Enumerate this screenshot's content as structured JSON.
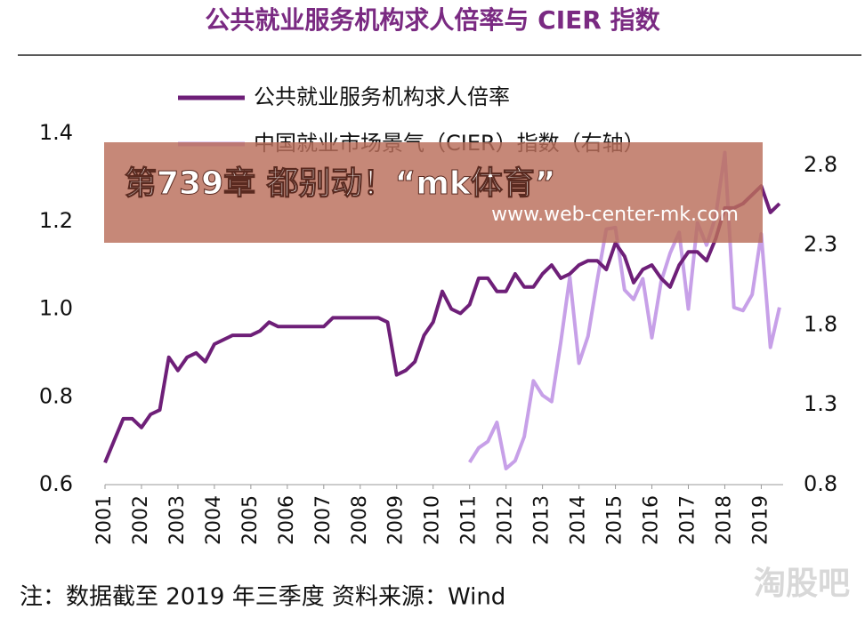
{
  "chart_data": {
    "type": "line",
    "title": "公共就业服务机构求人倍率与 CIER 指数",
    "x": [
      2001,
      2001.25,
      2001.5,
      2001.75,
      2002,
      2002.25,
      2002.5,
      2002.75,
      2003,
      2003.25,
      2003.5,
      2003.75,
      2004,
      2004.25,
      2004.5,
      2004.75,
      2005,
      2005.25,
      2005.5,
      2005.75,
      2006,
      2006.25,
      2006.5,
      2006.75,
      2007,
      2007.25,
      2007.5,
      2007.75,
      2008,
      2008.25,
      2008.5,
      2008.75,
      2009,
      2009.25,
      2009.5,
      2009.75,
      2010,
      2010.25,
      2010.5,
      2010.75,
      2011,
      2011.25,
      2011.5,
      2011.75,
      2012,
      2012.25,
      2012.5,
      2012.75,
      2013,
      2013.25,
      2013.5,
      2013.75,
      2014,
      2014.25,
      2014.5,
      2014.75,
      2015,
      2015.25,
      2015.5,
      2015.75,
      2016,
      2016.25,
      2016.5,
      2016.75,
      2017,
      2017.25,
      2017.5,
      2017.75,
      2018,
      2018.25,
      2018.5,
      2018.75,
      2019,
      2019.25,
      2019.5
    ],
    "series": [
      {
        "name": "公共就业服务机构求人倍率",
        "color": "#6e1f78",
        "values": [
          0.65,
          0.7,
          0.75,
          0.75,
          0.73,
          0.76,
          0.77,
          0.89,
          0.86,
          0.89,
          0.9,
          0.88,
          0.92,
          0.93,
          0.94,
          0.94,
          0.94,
          0.95,
          0.97,
          0.96,
          0.96,
          0.96,
          0.96,
          0.96,
          0.96,
          0.98,
          0.98,
          0.98,
          0.98,
          0.98,
          0.98,
          0.97,
          0.85,
          0.86,
          0.88,
          0.94,
          0.97,
          1.04,
          1.0,
          0.99,
          1.01,
          1.07,
          1.07,
          1.04,
          1.04,
          1.08,
          1.05,
          1.05,
          1.08,
          1.1,
          1.07,
          1.08,
          1.1,
          1.11,
          1.11,
          1.09,
          1.15,
          1.12,
          1.06,
          1.09,
          1.1,
          1.07,
          1.05,
          1.1,
          1.13,
          1.13,
          1.11,
          1.16,
          1.23,
          1.23,
          1.24,
          1.26,
          1.28,
          1.22,
          1.24
        ]
      },
      {
        "name": "中国就业市场景气（CIER）指数（右轴）",
        "color": "#c7a0e8",
        "axis": "y2",
        "values": [
          null,
          null,
          null,
          null,
          null,
          null,
          null,
          null,
          null,
          null,
          null,
          null,
          null,
          null,
          null,
          null,
          null,
          null,
          null,
          null,
          null,
          null,
          null,
          null,
          null,
          null,
          null,
          null,
          null,
          null,
          null,
          null,
          null,
          null,
          null,
          null,
          null,
          null,
          null,
          null,
          0.94,
          1.03,
          1.07,
          1.19,
          0.9,
          0.95,
          1.1,
          1.45,
          1.36,
          1.32,
          1.69,
          2.1,
          1.56,
          1.73,
          2.08,
          2.4,
          2.41,
          2.02,
          1.96,
          2.09,
          1.72,
          2.07,
          2.25,
          2.38,
          1.9,
          2.44,
          2.3,
          2.48,
          2.88,
          1.91,
          1.89,
          1.99,
          2.37,
          1.66,
          1.91
        ]
      }
    ],
    "xlim": [
      2001,
      2019.6
    ],
    "xticks": [
      2001,
      2002,
      2003,
      2004,
      2005,
      2006,
      2007,
      2008,
      2009,
      2010,
      2011,
      2012,
      2013,
      2014,
      2015,
      2016,
      2017,
      2018,
      2019
    ],
    "ylim": [
      0.6,
      1.4
    ],
    "yticks": [
      0.6,
      0.8,
      {
        "value": 1.0,
        "label": "1.0"
      },
      1.2,
      1.4
    ],
    "y2lim": [
      0.8,
      3.0
    ],
    "y2ticks": [
      0.8,
      1.3,
      1.8,
      2.3,
      2.8
    ],
    "note": "注：数据截至 2019 年三季度 资料来源：Wind"
  },
  "overlay": {
    "headline": "第739章 都别动！“mk体育”",
    "url": "www.web-center-mk.com"
  },
  "watermark": "淘股吧"
}
